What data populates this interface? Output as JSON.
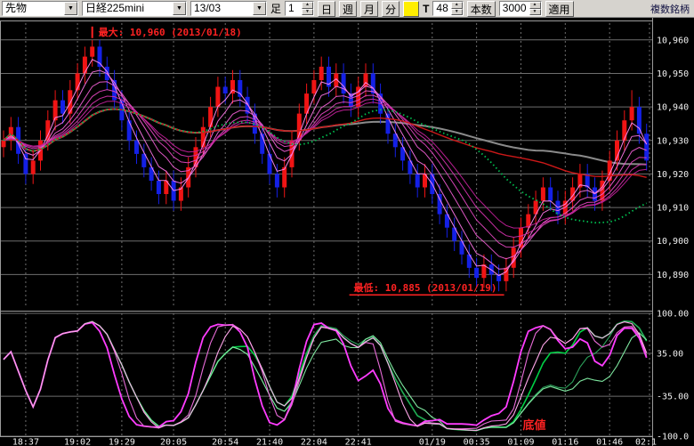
{
  "toolbar": {
    "instrument_type": "先物",
    "instrument": "日経225mini",
    "contract_month": "13/03",
    "bar_label": "足",
    "interval_value": "1",
    "period_buttons": [
      "日",
      "週",
      "月",
      "分"
    ],
    "tick_label": "T",
    "tick_count": "48",
    "bar_count_label": "本数",
    "bar_count_value": "3000",
    "apply_label": "適用",
    "multi_symbol_label": "複数銘柄"
  },
  "chart_data": {
    "type": "candlestick",
    "title": "日経225mini 先物 13/03",
    "price_axis": {
      "min": 10880,
      "max": 10965,
      "tick_values": [
        10960,
        10950,
        10940,
        10930,
        10920,
        10910,
        10900,
        10890
      ],
      "tick_labels": [
        "10,960",
        "10,950",
        "10,940",
        "10,930",
        "10,920",
        "10,910",
        "10,900",
        "10,890"
      ]
    },
    "time_axis": {
      "tick_labels": [
        "18:37",
        "19:02",
        "19:29",
        "20:05",
        "20:54",
        "21:40",
        "22:04",
        "22:41",
        "01/19",
        "00:35",
        "01:09",
        "01:16",
        "01:46",
        "02:1"
      ],
      "tick_indices": [
        3,
        10,
        16,
        23,
        30,
        36,
        42,
        48,
        58,
        64,
        70,
        76,
        82,
        88
      ]
    },
    "annotations": {
      "max_label": "最大: 10,960 (2013/01/18)",
      "min_label": "最低: 10,885 (2013/01/19)",
      "bottom_label": "底値",
      "max_index": 12,
      "min_index": 67
    },
    "candles": [
      [
        10928,
        10933,
        10925,
        10930
      ],
      [
        10930,
        10937,
        10927,
        10934
      ],
      [
        10934,
        10937,
        10923,
        10926
      ],
      [
        10926,
        10929,
        10917,
        10920
      ],
      [
        10920,
        10927,
        10917,
        10924
      ],
      [
        10924,
        10933,
        10921,
        10930
      ],
      [
        10930,
        10939,
        10927,
        10936
      ],
      [
        10936,
        10945,
        10933,
        10942
      ],
      [
        10942,
        10945,
        10935,
        10938
      ],
      [
        10938,
        10948,
        10935,
        10945
      ],
      [
        10945,
        10953,
        10942,
        10950
      ],
      [
        10950,
        10958,
        10947,
        10955
      ],
      [
        10955,
        10960,
        10952,
        10958
      ],
      [
        10958,
        10960,
        10949,
        10952
      ],
      [
        10952,
        10955,
        10945,
        10948
      ],
      [
        10948,
        10951,
        10939,
        10942
      ],
      [
        10942,
        10945,
        10933,
        10936
      ],
      [
        10936,
        10939,
        10927,
        10930
      ],
      [
        10930,
        10933,
        10923,
        10926
      ],
      [
        10926,
        10929,
        10919,
        10922
      ],
      [
        10922,
        10925,
        10915,
        10918
      ],
      [
        10918,
        10921,
        10911,
        10914
      ],
      [
        10914,
        10921,
        10911,
        10918
      ],
      [
        10918,
        10921,
        10909,
        10912
      ],
      [
        10912,
        10919,
        10909,
        10916
      ],
      [
        10916,
        10925,
        10913,
        10922
      ],
      [
        10922,
        10931,
        10919,
        10928
      ],
      [
        10928,
        10937,
        10925,
        10934
      ],
      [
        10934,
        10943,
        10931,
        10940
      ],
      [
        10940,
        10949,
        10937,
        10946
      ],
      [
        10946,
        10949,
        10941,
        10944
      ],
      [
        10944,
        10951,
        10941,
        10948
      ],
      [
        10948,
        10951,
        10940,
        10943
      ],
      [
        10943,
        10946,
        10935,
        10938
      ],
      [
        10938,
        10941,
        10929,
        10932
      ],
      [
        10932,
        10935,
        10923,
        10926
      ],
      [
        10926,
        10929,
        10917,
        10920
      ],
      [
        10920,
        10923,
        10913,
        10916
      ],
      [
        10916,
        10925,
        10913,
        10922
      ],
      [
        10922,
        10933,
        10919,
        10930
      ],
      [
        10930,
        10941,
        10927,
        10938
      ],
      [
        10938,
        10947,
        10935,
        10944
      ],
      [
        10944,
        10951,
        10941,
        10948
      ],
      [
        10948,
        10955,
        10945,
        10952
      ],
      [
        10952,
        10955,
        10943,
        10946
      ],
      [
        10946,
        10953,
        10943,
        10950
      ],
      [
        10950,
        10953,
        10941,
        10944
      ],
      [
        10944,
        10947,
        10937,
        10940
      ],
      [
        10940,
        10949,
        10937,
        10946
      ],
      [
        10946,
        10953,
        10943,
        10950
      ],
      [
        10950,
        10953,
        10941,
        10944
      ],
      [
        10944,
        10947,
        10935,
        10938
      ],
      [
        10938,
        10941,
        10929,
        10932
      ],
      [
        10932,
        10935,
        10925,
        10928
      ],
      [
        10928,
        10931,
        10921,
        10924
      ],
      [
        10924,
        10927,
        10917,
        10920
      ],
      [
        10920,
        10923,
        10913,
        10916
      ],
      [
        10916,
        10923,
        10913,
        10920
      ],
      [
        10920,
        10923,
        10911,
        10914
      ],
      [
        10914,
        10917,
        10905,
        10908
      ],
      [
        10908,
        10911,
        10901,
        10904
      ],
      [
        10904,
        10907,
        10897,
        10900
      ],
      [
        10900,
        10903,
        10893,
        10896
      ],
      [
        10896,
        10899,
        10889,
        10892
      ],
      [
        10892,
        10895,
        10886,
        10889
      ],
      [
        10889,
        10896,
        10886,
        10893
      ],
      [
        10893,
        10896,
        10885,
        10890
      ],
      [
        10890,
        10893,
        10885,
        10888
      ],
      [
        10888,
        10895,
        10885,
        10892
      ],
      [
        10892,
        10901,
        10889,
        10898
      ],
      [
        10898,
        10907,
        10895,
        10904
      ],
      [
        10904,
        10911,
        10901,
        10908
      ],
      [
        10908,
        10915,
        10905,
        10912
      ],
      [
        10912,
        10919,
        10909,
        10916
      ],
      [
        10916,
        10919,
        10909,
        10912
      ],
      [
        10912,
        10915,
        10905,
        10908
      ],
      [
        10908,
        10915,
        10905,
        10912
      ],
      [
        10912,
        10919,
        10909,
        10916
      ],
      [
        10916,
        10923,
        10913,
        10920
      ],
      [
        10920,
        10923,
        10913,
        10916
      ],
      [
        10916,
        10919,
        10909,
        10912
      ],
      [
        10912,
        10921,
        10909,
        10918
      ],
      [
        10918,
        10927,
        10915,
        10924
      ],
      [
        10924,
        10933,
        10921,
        10930
      ],
      [
        10930,
        10939,
        10927,
        10936
      ],
      [
        10936,
        10945,
        10933,
        10940
      ],
      [
        10940,
        10943,
        10929,
        10932
      ],
      [
        10932,
        10935,
        10921,
        10924
      ]
    ],
    "overlays": {
      "ema_ribbon": {
        "periods": [
          3,
          5,
          8,
          11,
          14,
          17
        ],
        "colors": [
          "#ff8bf0",
          "#f573e0",
          "#ea5ccf",
          "#de46bd",
          "#d030aa",
          "#c02098"
        ]
      },
      "sma_green": {
        "period": 25,
        "color": "#00c050",
        "style": "dotted"
      },
      "sma_red": {
        "period": 45,
        "color": "#cc1818"
      },
      "sma_gray": {
        "period": 70,
        "color": "#8a8a8a"
      }
    },
    "oscillator": {
      "type": "stochastic",
      "range": [
        -100,
        100
      ],
      "tick_values": [
        100,
        35,
        -35,
        -100
      ],
      "tick_labels": [
        "100.00",
        "35.00",
        "-35.00",
        "-100.0"
      ],
      "magenta_periods": [
        7,
        11,
        15
      ],
      "magenta_colors": [
        "#ff3cff",
        "#e86cd8",
        "#ffa6ea"
      ],
      "green_periods": [
        19,
        26,
        34
      ],
      "green_colors": [
        "#00d045",
        "#2ca05a",
        "#7fe8a0"
      ]
    },
    "colors": {
      "up": "#f01414",
      "down": "#1420e6",
      "bg": "#000000",
      "grid": "#6e6e6e",
      "axis_text": "#f0f0f0",
      "annotation": "#ff2222",
      "frame": "#9a9a9a"
    }
  }
}
